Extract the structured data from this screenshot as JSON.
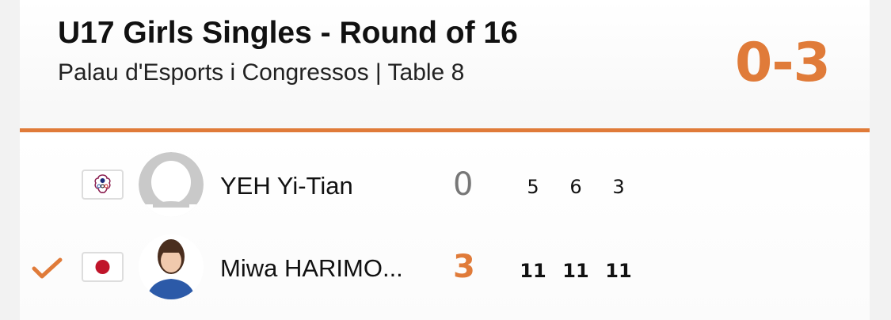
{
  "header": {
    "title": "U17 Girls Singles - Round of 16",
    "subtitle": "Palau d'Esports i Congressos | Table 8",
    "score": "0-3"
  },
  "colors": {
    "accent": "#e07b39",
    "loser_sets": "#777777"
  },
  "players": [
    {
      "name": "YEH Yi-Tian",
      "flag": "chinese-taipei-olympic-flag",
      "avatar": "placeholder-avatar",
      "sets": "0",
      "games": [
        "5",
        "6",
        "3"
      ],
      "winner": false
    },
    {
      "name": "Miwa HARIMO...",
      "flag": "japan-flag",
      "avatar": "player-photo",
      "sets": "3",
      "games": [
        "11",
        "11",
        "11"
      ],
      "winner": true
    }
  ]
}
